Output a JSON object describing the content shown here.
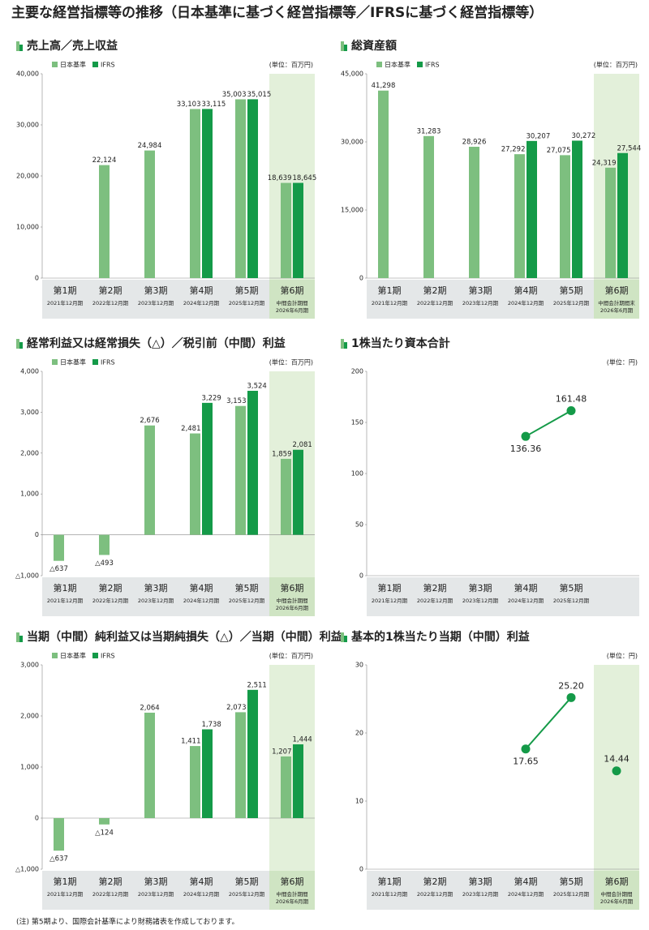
{
  "title": "主要な経営指標等の推移（日本基準に基づく経営指標等／IFRSに基づく経営指標等）",
  "footnote": "(注) 第5期より、国際会計基準により財務諸表を作成しております。",
  "chart_data": [
    {
      "type": "bar",
      "title": "売上高／売上収益",
      "unit": "(単位：百万円)",
      "highlight_last": true,
      "categories": [
        "第1期",
        "第2期",
        "第3期",
        "第4期",
        "第5期",
        "第6期"
      ],
      "period_labels": [
        [
          "2021年12月期"
        ],
        [
          "2022年12月期"
        ],
        [
          "2023年12月期"
        ],
        [
          "2024年12月期"
        ],
        [
          "2025年12月期"
        ],
        [
          "中間会計期間",
          "2026年6月期"
        ]
      ],
      "series": [
        {
          "name": "日本基準",
          "color": "#7dbf7f",
          "values": [
            null,
            22124,
            24984,
            33103,
            35003,
            18639
          ],
          "value_labels": [
            null,
            "22,124",
            "24,984",
            "33,103",
            "35,003",
            "18,639"
          ]
        },
        {
          "name": "IFRS",
          "color": "#149a48",
          "values": [
            null,
            null,
            null,
            33115,
            35015,
            18645
          ],
          "value_labels": [
            null,
            null,
            null,
            "33,115",
            "35,015",
            "18,645"
          ]
        }
      ],
      "ylim": [
        0,
        40000
      ],
      "yticks": [
        0,
        {
          "value": 10000,
          "label": "10,000"
        },
        {
          "value": 20000,
          "label": "20,000"
        },
        {
          "value": 30000,
          "label": "30,000"
        },
        {
          "value": 40000,
          "label": "40,000"
        }
      ]
    },
    {
      "type": "bar",
      "title": "総資産額",
      "unit": "(単位：百万円)",
      "highlight_last": true,
      "categories": [
        "第1期",
        "第2期",
        "第3期",
        "第4期",
        "第5期",
        "第6期"
      ],
      "period_labels": [
        [
          "2021年12月期"
        ],
        [
          "2022年12月期"
        ],
        [
          "2023年12月期"
        ],
        [
          "2024年12月期"
        ],
        [
          "2025年12月期"
        ],
        [
          "中間会計期間末",
          "2026年6月期"
        ]
      ],
      "series": [
        {
          "name": "日本基準",
          "color": "#7dbf7f",
          "values": [
            41298,
            31283,
            28926,
            27292,
            27075,
            24319
          ],
          "value_labels": [
            "41,298",
            "31,283",
            "28,926",
            "27,292",
            "27,075",
            "24,319"
          ]
        },
        {
          "name": "IFRS",
          "color": "#149a48",
          "values": [
            null,
            null,
            null,
            30207,
            30272,
            27544
          ],
          "value_labels": [
            null,
            null,
            null,
            "30,207",
            "30,272",
            "27,544"
          ]
        }
      ],
      "ylim": [
        0,
        45000
      ],
      "yticks": [
        0,
        {
          "value": 15000,
          "label": "15,000"
        },
        {
          "value": 30000,
          "label": "30,000"
        },
        {
          "value": 45000,
          "label": "45,000"
        }
      ]
    },
    {
      "type": "bar",
      "title": "経常利益又は経常損失（△）／税引前（中間）利益",
      "unit": "(単位：百万円)",
      "highlight_last": true,
      "categories": [
        "第1期",
        "第2期",
        "第3期",
        "第4期",
        "第5期",
        "第6期"
      ],
      "period_labels": [
        [
          "2021年12月期"
        ],
        [
          "2022年12月期"
        ],
        [
          "2023年12月期"
        ],
        [
          "2024年12月期"
        ],
        [
          "2025年12月期"
        ],
        [
          "中間会計期間",
          "2026年6月期"
        ]
      ],
      "series": [
        {
          "name": "日本基準",
          "color": "#7dbf7f",
          "values": [
            -637,
            -493,
            2676,
            2481,
            3153,
            1859
          ],
          "value_labels": [
            "△637",
            "△493",
            "2,676",
            "2,481",
            "3,153",
            "1,859"
          ]
        },
        {
          "name": "IFRS",
          "color": "#149a48",
          "values": [
            null,
            null,
            null,
            3229,
            3524,
            2081
          ],
          "value_labels": [
            null,
            null,
            null,
            "3,229",
            "3,524",
            "2,081"
          ]
        }
      ],
      "ylim": [
        -1000,
        4000
      ],
      "yticks": [
        {
          "value": -1000,
          "label": "△1,000"
        },
        0,
        {
          "value": 1000,
          "label": "1,000"
        },
        {
          "value": 2000,
          "label": "2,000"
        },
        {
          "value": 3000,
          "label": "3,000"
        },
        {
          "value": 4000,
          "label": "4,000"
        }
      ]
    },
    {
      "type": "line",
      "title": "1株当たり資本合計",
      "unit": "(単位：円)",
      "highlight_last": false,
      "categories": [
        "第1期",
        "第2期",
        "第3期",
        "第4期",
        "第5期"
      ],
      "period_labels": [
        [
          "2021年12月期"
        ],
        [
          "2022年12月期"
        ],
        [
          "2023年12月期"
        ],
        [
          "2024年12月期"
        ],
        [
          "2025年12月期"
        ]
      ],
      "series": [
        {
          "color": "#149a48",
          "values": [
            null,
            null,
            null,
            136.36,
            161.48
          ]
        }
      ],
      "ylim": [
        0,
        200
      ],
      "yticks": [
        0,
        50,
        100,
        150,
        200
      ]
    },
    {
      "type": "bar",
      "title": "当期（中間）純利益又は当期純損失（△）／当期（中間）利益",
      "unit": "(単位：百万円)",
      "highlight_last": true,
      "categories": [
        "第1期",
        "第2期",
        "第3期",
        "第4期",
        "第5期",
        "第6期"
      ],
      "period_labels": [
        [
          "2021年12月期"
        ],
        [
          "2022年12月期"
        ],
        [
          "2023年12月期"
        ],
        [
          "2024年12月期"
        ],
        [
          "2025年12月期"
        ],
        [
          "中間会計期間",
          "2026年6月期"
        ]
      ],
      "series": [
        {
          "name": "日本基準",
          "color": "#7dbf7f",
          "values": [
            -637,
            -124,
            2064,
            1411,
            2073,
            1207
          ],
          "value_labels": [
            "△637",
            "△124",
            "2,064",
            "1,411",
            "2,073",
            "1,207"
          ]
        },
        {
          "name": "IFRS",
          "color": "#149a48",
          "values": [
            null,
            null,
            null,
            1738,
            2511,
            1444
          ],
          "value_labels": [
            null,
            null,
            null,
            "1,738",
            "2,511",
            "1,444"
          ]
        }
      ],
      "ylim": [
        -1000,
        3000
      ],
      "yticks": [
        {
          "value": -1000,
          "label": "△1,000"
        },
        0,
        {
          "value": 1000,
          "label": "1,000"
        },
        {
          "value": 2000,
          "label": "2,000"
        },
        {
          "value": 3000,
          "label": "3,000"
        }
      ]
    },
    {
      "type": "line",
      "title": "基本的1株当たり当期（中間）利益",
      "unit": "(単位：円)",
      "highlight_last": true,
      "categories": [
        "第1期",
        "第2期",
        "第3期",
        "第4期",
        "第5期",
        "第6期"
      ],
      "period_labels": [
        [
          "2021年12月期"
        ],
        [
          "2022年12月期"
        ],
        [
          "2023年12月期"
        ],
        [
          "2024年12月期"
        ],
        [
          "2025年12月期"
        ],
        [
          "中間会計期間",
          "2026年6月期"
        ]
      ],
      "series": [
        {
          "color": "#149a48",
          "values": [
            null,
            null,
            null,
            17.65,
            25.2,
            null
          ],
          "value_labels": [
            null,
            null,
            null,
            "17.65",
            "25.20",
            null
          ]
        },
        {
          "color": "#149a48",
          "values": [
            null,
            null,
            null,
            null,
            null,
            14.44
          ],
          "value_labels": [
            null,
            null,
            null,
            null,
            null,
            "14.44"
          ]
        }
      ],
      "ylim": [
        0,
        30
      ],
      "yticks": [
        0,
        10,
        20,
        30
      ]
    }
  ]
}
